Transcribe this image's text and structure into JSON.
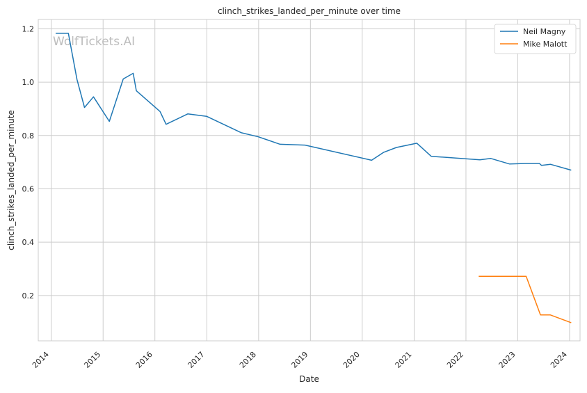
{
  "chart_data": {
    "type": "line",
    "title": "clinch_strikes_landed_per_minute over time",
    "xlabel": "Date",
    "ylabel": "clinch_strikes_landed_per_minute",
    "watermark": "WolfTickets.AI",
    "xlim": [
      "2013-10-01",
      "2024-03-15"
    ],
    "ylim": [
      0.03,
      1.235
    ],
    "x_ticks": [
      "2014",
      "2015",
      "2016",
      "2017",
      "2018",
      "2019",
      "2020",
      "2021",
      "2022",
      "2023",
      "2024"
    ],
    "y_ticks": [
      "0.2",
      "0.4",
      "0.6",
      "0.8",
      "1.0",
      "1.2"
    ],
    "grid": true,
    "legend_position": "top-right",
    "series": [
      {
        "name": "Neil Magny",
        "color": "#1f77b4",
        "points": [
          {
            "x": "2014-02-01",
            "y": 1.183
          },
          {
            "x": "2014-05-01",
            "y": 1.183
          },
          {
            "x": "2014-07-01",
            "y": 1.01
          },
          {
            "x": "2014-08-23",
            "y": 0.905
          },
          {
            "x": "2014-10-25",
            "y": 0.945
          },
          {
            "x": "2015-02-14",
            "y": 0.853
          },
          {
            "x": "2015-05-23",
            "y": 1.012
          },
          {
            "x": "2015-08-01",
            "y": 1.033
          },
          {
            "x": "2015-08-23",
            "y": 0.968
          },
          {
            "x": "2016-02-06",
            "y": 0.89
          },
          {
            "x": "2016-03-20",
            "y": 0.842
          },
          {
            "x": "2016-08-20",
            "y": 0.881
          },
          {
            "x": "2016-12-30",
            "y": 0.872
          },
          {
            "x": "2017-09-02",
            "y": 0.81
          },
          {
            "x": "2017-12-30",
            "y": 0.795
          },
          {
            "x": "2018-06-01",
            "y": 0.767
          },
          {
            "x": "2018-11-24",
            "y": 0.764
          },
          {
            "x": "2020-03-07",
            "y": 0.707
          },
          {
            "x": "2020-06-01",
            "y": 0.737
          },
          {
            "x": "2020-08-29",
            "y": 0.755
          },
          {
            "x": "2021-01-20",
            "y": 0.771
          },
          {
            "x": "2021-05-01",
            "y": 0.722
          },
          {
            "x": "2022-04-09",
            "y": 0.709
          },
          {
            "x": "2022-06-25",
            "y": 0.714
          },
          {
            "x": "2022-11-05",
            "y": 0.693
          },
          {
            "x": "2023-02-25",
            "y": 0.695
          },
          {
            "x": "2023-06-03",
            "y": 0.695
          },
          {
            "x": "2023-06-17",
            "y": 0.688
          },
          {
            "x": "2023-08-19",
            "y": 0.692
          },
          {
            "x": "2024-01-13",
            "y": 0.67
          }
        ]
      },
      {
        "name": "Mike Malott",
        "color": "#ff7f0e",
        "points": [
          {
            "x": "2022-04-01",
            "y": 0.272
          },
          {
            "x": "2023-03-01",
            "y": 0.272
          },
          {
            "x": "2023-06-10",
            "y": 0.127
          },
          {
            "x": "2023-08-19",
            "y": 0.127
          },
          {
            "x": "2024-01-13",
            "y": 0.098
          }
        ]
      }
    ]
  }
}
